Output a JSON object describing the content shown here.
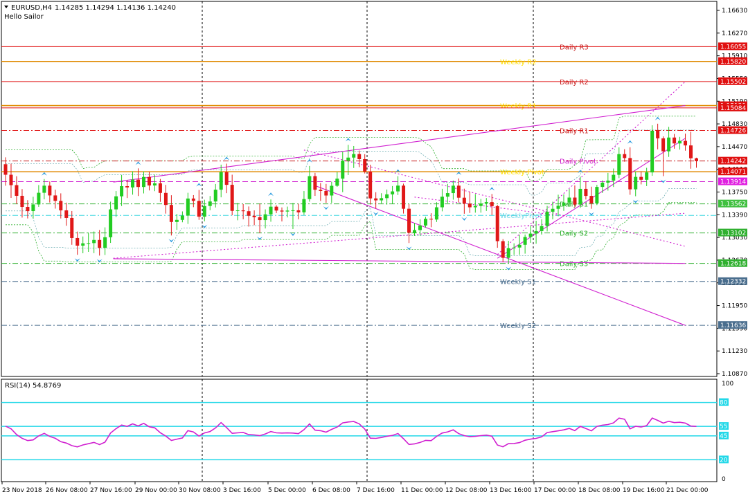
{
  "header": {
    "symbol": "EURUSD,H4",
    "ohlc": "1.14285 1.14294 1.14136 1.14240",
    "subtitle": "Hello Sailor"
  },
  "chart_data": {
    "type": "candlestick",
    "price_axis": {
      "min": 1.1087,
      "max": 1.1663,
      "ticks": [
        "1.16630",
        "1.16270",
        "1.15910",
        "1.15550",
        "1.15190",
        "1.14830",
        "1.14470",
        "1.14110",
        "1.13750",
        "1.13390",
        "1.13030",
        "1.12670",
        "1.12310",
        "1.11950",
        "1.11590",
        "1.11230",
        "1.10870"
      ]
    },
    "time_axis": {
      "labels": [
        "23 Nov 2018",
        "26 Nov 08:00",
        "27 Nov 16:00",
        "29 Nov 00:00",
        "30 Nov 08:00",
        "3 Dec 16:00",
        "5 Dec 00:00",
        "6 Dec 08:00",
        "7 Dec 16:00",
        "11 Dec 00:00",
        "12 Dec 08:00",
        "13 Dec 16:00",
        "17 Dec 00:00",
        "18 Dec 08:00",
        "19 Dec 16:00",
        "21 Dec 00:00"
      ]
    },
    "levels": [
      {
        "name": "Daily R3",
        "price": 1.16055,
        "price_label": "1.16055",
        "color": "#e01010",
        "tag_color": "#e01010",
        "style": "solid",
        "label_color": "#c81c1c"
      },
      {
        "name": "Weekly R2",
        "price": 1.1582,
        "price_label": "1.15820",
        "color": "#e08a00",
        "tag_color": "#e01010",
        "style": "solid",
        "label_color": "#ffe000"
      },
      {
        "name": "Daily R2",
        "price": 1.15502,
        "price_label": "1.15502",
        "color": "#e01010",
        "tag_color": "#e01010",
        "style": "solid",
        "label_color": "#c81c1c"
      },
      {
        "name": "Weekly R1",
        "price": 1.15121,
        "price_label": "1.15121",
        "color": "#e08a00",
        "tag_color": "#e01010",
        "style": "solid",
        "label_color": "#ffe000"
      },
      {
        "name": "",
        "price": 1.15084,
        "price_label": "1.15084",
        "color": "#e01010",
        "tag_color": "#e01010",
        "style": "solid",
        "label_color": "#c81c1c"
      },
      {
        "name": "Daily R1",
        "price": 1.14726,
        "price_label": "1.14726",
        "color": "#e01010",
        "tag_color": "#e01010",
        "style": "dashdot",
        "label_color": "#c81c1c"
      },
      {
        "name": "Daily Pivot",
        "price": 1.14242,
        "price_label": "1.14242",
        "color": "#c81c1c",
        "tag_color": "#e01010",
        "style": "dashdot",
        "label_color": "#d020d0"
      },
      {
        "name": "Weekly Pivot",
        "price": 1.14071,
        "price_label": "1.14071",
        "color": "#e08a00",
        "tag_color": "#e01010",
        "style": "solid",
        "label_color": "#ffe000"
      },
      {
        "name": "",
        "price": 1.13914,
        "price_label": "1.13914",
        "color": "#d020d0",
        "tag_color": "#e020e0",
        "style": "dash",
        "label_color": "#d020d0"
      },
      {
        "name": "Daily S1",
        "price": 1.13562,
        "price_label": "1.13562",
        "color": "#30b030",
        "tag_color": "#40c040",
        "style": "dashdot",
        "label_color": "#30b030"
      },
      {
        "name": "WeeklyPivot",
        "price": 1.1338,
        "price_label": "",
        "color": "#40d8e0",
        "tag_color": "#40d8e0",
        "style": "dashdot",
        "label_color": "#70d8e8"
      },
      {
        "name": "Daily S2",
        "price": 1.13102,
        "price_label": "1.13102",
        "color": "#30b030",
        "tag_color": "#30b030",
        "style": "dashdot",
        "label_color": "#30b030"
      },
      {
        "name": "Daily S3",
        "price": 1.12618,
        "price_label": "1.12618",
        "color": "#30b030",
        "tag_color": "#30b030",
        "style": "dashdot",
        "label_color": "#30b030"
      },
      {
        "name": "Weekly S1",
        "price": 1.12332,
        "price_label": "1.12332",
        "color": "#4a6e8e",
        "tag_color": "#4a6e8e",
        "style": "dashdot",
        "label_color": "#4a6e8e"
      },
      {
        "name": "Weekly S2",
        "price": 1.11636,
        "price_label": "1.11636",
        "color": "#4a6e8e",
        "tag_color": "#4a6e8e",
        "style": "dashdot",
        "label_color": "#4a6e8e"
      }
    ],
    "candles": [
      [
        1.14191,
        1.143,
        1.1385,
        1.14024
      ],
      [
        1.14024,
        1.142,
        1.13657,
        1.13859
      ],
      [
        1.13859,
        1.14001,
        1.13558,
        1.1369
      ],
      [
        1.1369,
        1.13797,
        1.13345,
        1.13514
      ],
      [
        1.13514,
        1.13621,
        1.13331,
        1.13448
      ],
      [
        1.13448,
        1.13675,
        1.13331,
        1.13553
      ],
      [
        1.13553,
        1.1386,
        1.13515,
        1.13738
      ],
      [
        1.13738,
        1.13956,
        1.13634,
        1.13851
      ],
      [
        1.13851,
        1.13918,
        1.13584,
        1.13696
      ],
      [
        1.13696,
        1.13788,
        1.13487,
        1.1361
      ],
      [
        1.1361,
        1.13729,
        1.13331,
        1.13459
      ],
      [
        1.13459,
        1.13582,
        1.13215,
        1.13339
      ],
      [
        1.13339,
        1.13449,
        1.12913,
        1.13021
      ],
      [
        1.13021,
        1.13123,
        1.12755,
        1.129
      ],
      [
        1.129,
        1.13045,
        1.12779,
        1.12937
      ],
      [
        1.12937,
        1.13109,
        1.12801,
        1.1294
      ],
      [
        1.1294,
        1.13125,
        1.12781,
        1.1299
      ],
      [
        1.1299,
        1.13148,
        1.12742,
        1.12866
      ],
      [
        1.12866,
        1.1319,
        1.12752,
        1.13033
      ],
      [
        1.13033,
        1.13597,
        1.12943,
        1.13475
      ],
      [
        1.13475,
        1.13766,
        1.13353,
        1.13682
      ],
      [
        1.13682,
        1.14021,
        1.13528,
        1.13843
      ],
      [
        1.13843,
        1.13939,
        1.13655,
        1.13823
      ],
      [
        1.13823,
        1.1408,
        1.13708,
        1.13947
      ],
      [
        1.13947,
        1.14125,
        1.13687,
        1.1383
      ],
      [
        1.1383,
        1.14078,
        1.13728,
        1.13989
      ],
      [
        1.13989,
        1.14074,
        1.13775,
        1.13854
      ],
      [
        1.13854,
        1.14024,
        1.13764,
        1.13888
      ],
      [
        1.13888,
        1.13957,
        1.13594,
        1.13736
      ],
      [
        1.13736,
        1.13863,
        1.13408,
        1.13545
      ],
      [
        1.13545,
        1.13699,
        1.13061,
        1.13275
      ],
      [
        1.13275,
        1.13403,
        1.1315,
        1.13308
      ],
      [
        1.13308,
        1.13443,
        1.1327,
        1.13376
      ],
      [
        1.13376,
        1.13738,
        1.13244,
        1.13647
      ],
      [
        1.13647,
        1.13701,
        1.1351,
        1.1361
      ],
      [
        1.1361,
        1.13783,
        1.13309,
        1.13359
      ],
      [
        1.13359,
        1.13628,
        1.13286,
        1.13529
      ],
      [
        1.13529,
        1.13687,
        1.13462,
        1.136
      ],
      [
        1.136,
        1.13877,
        1.13505,
        1.13787
      ],
      [
        1.13787,
        1.14184,
        1.13666,
        1.14064
      ],
      [
        1.14064,
        1.142,
        1.13732,
        1.13864
      ],
      [
        1.13864,
        1.14025,
        1.13381,
        1.13451
      ],
      [
        1.13451,
        1.13578,
        1.13302,
        1.13459
      ],
      [
        1.13459,
        1.13559,
        1.13318,
        1.13446
      ],
      [
        1.13446,
        1.13521,
        1.13202,
        1.13374
      ],
      [
        1.13374,
        1.13459,
        1.13224,
        1.1335
      ],
      [
        1.1335,
        1.13566,
        1.13097,
        1.13305
      ],
      [
        1.13305,
        1.13475,
        1.13172,
        1.13396
      ],
      [
        1.13396,
        1.13632,
        1.13279,
        1.13518
      ],
      [
        1.13518,
        1.13541,
        1.13415,
        1.13456
      ],
      [
        1.13456,
        1.13506,
        1.13284,
        1.13441
      ],
      [
        1.13441,
        1.13519,
        1.13347,
        1.13456
      ],
      [
        1.13456,
        1.13578,
        1.13163,
        1.1346
      ],
      [
        1.1346,
        1.13564,
        1.13317,
        1.13428
      ],
      [
        1.13428,
        1.13766,
        1.13386,
        1.13638
      ],
      [
        1.13638,
        1.14163,
        1.13597,
        1.14002
      ],
      [
        1.14002,
        1.14054,
        1.13689,
        1.13786
      ],
      [
        1.13786,
        1.13893,
        1.13609,
        1.13767
      ],
      [
        1.13767,
        1.13879,
        1.13578,
        1.13695
      ],
      [
        1.13695,
        1.13915,
        1.1358,
        1.13849
      ],
      [
        1.13849,
        1.14069,
        1.13832,
        1.13962
      ],
      [
        1.13962,
        1.1439,
        1.13748,
        1.14247
      ],
      [
        1.14247,
        1.14498,
        1.14019,
        1.14296
      ],
      [
        1.14296,
        1.1448,
        1.14131,
        1.14352
      ],
      [
        1.14352,
        1.14407,
        1.14145,
        1.14271
      ],
      [
        1.14271,
        1.1435,
        1.14044,
        1.14076
      ],
      [
        1.14076,
        1.14183,
        1.13552,
        1.13649
      ],
      [
        1.13649,
        1.13747,
        1.1349,
        1.13618
      ],
      [
        1.13618,
        1.13731,
        1.13571,
        1.13653
      ],
      [
        1.13653,
        1.1379,
        1.13551,
        1.13713
      ],
      [
        1.13713,
        1.13845,
        1.13561,
        1.1376
      ],
      [
        1.1376,
        1.14001,
        1.13702,
        1.13852
      ],
      [
        1.13852,
        1.13883,
        1.13409,
        1.13485
      ],
      [
        1.13485,
        1.13558,
        1.12941,
        1.13103
      ],
      [
        1.13103,
        1.13259,
        1.13054,
        1.13147
      ],
      [
        1.13147,
        1.13318,
        1.13057,
        1.13219
      ],
      [
        1.13219,
        1.13356,
        1.13188,
        1.13326
      ],
      [
        1.13326,
        1.13414,
        1.13192,
        1.13314
      ],
      [
        1.13314,
        1.13589,
        1.13275,
        1.13508
      ],
      [
        1.13508,
        1.13801,
        1.13444,
        1.13676
      ],
      [
        1.13676,
        1.13879,
        1.13576,
        1.13733
      ],
      [
        1.13733,
        1.13932,
        1.13629,
        1.13851
      ],
      [
        1.13851,
        1.13965,
        1.13584,
        1.1366
      ],
      [
        1.1366,
        1.13803,
        1.13406,
        1.13566
      ],
      [
        1.13566,
        1.13752,
        1.13418,
        1.13508
      ],
      [
        1.13508,
        1.13718,
        1.13423,
        1.13529
      ],
      [
        1.13529,
        1.1364,
        1.13423,
        1.13567
      ],
      [
        1.13567,
        1.13655,
        1.1345,
        1.1359
      ],
      [
        1.1359,
        1.13719,
        1.13383,
        1.13526
      ],
      [
        1.13526,
        1.13545,
        1.12866,
        1.12971
      ],
      [
        1.12971,
        1.13003,
        1.1264,
        1.12707
      ],
      [
        1.12707,
        1.12977,
        1.1262,
        1.12861
      ],
      [
        1.12861,
        1.12937,
        1.12753,
        1.1287
      ],
      [
        1.1287,
        1.13073,
        1.12756,
        1.12913
      ],
      [
        1.12913,
        1.13076,
        1.12773,
        1.13037
      ],
      [
        1.13037,
        1.13222,
        1.12945,
        1.13091
      ],
      [
        1.13091,
        1.13295,
        1.12931,
        1.13131
      ],
      [
        1.13131,
        1.13318,
        1.13075,
        1.13211
      ],
      [
        1.13211,
        1.1353,
        1.13126,
        1.13438
      ],
      [
        1.13438,
        1.13597,
        1.13317,
        1.13484
      ],
      [
        1.13484,
        1.13707,
        1.13366,
        1.13533
      ],
      [
        1.13533,
        1.13713,
        1.13451,
        1.13582
      ],
      [
        1.13582,
        1.138,
        1.13515,
        1.13662
      ],
      [
        1.13662,
        1.13855,
        1.13511,
        1.13551
      ],
      [
        1.13551,
        1.13993,
        1.13498,
        1.138
      ],
      [
        1.138,
        1.13918,
        1.13631,
        1.13689
      ],
      [
        1.13689,
        1.13835,
        1.13485,
        1.1357
      ],
      [
        1.1357,
        1.13865,
        1.13543,
        1.13831
      ],
      [
        1.13831,
        1.13935,
        1.13735,
        1.13899
      ],
      [
        1.13899,
        1.14053,
        1.13772,
        1.13931
      ],
      [
        1.13931,
        1.14123,
        1.1383,
        1.14023
      ],
      [
        1.14023,
        1.14458,
        1.1397,
        1.14351
      ],
      [
        1.14351,
        1.14429,
        1.14231,
        1.14289
      ],
      [
        1.14289,
        1.1446,
        1.13706,
        1.13793
      ],
      [
        1.13793,
        1.14076,
        1.13683,
        1.1399
      ],
      [
        1.1399,
        1.14079,
        1.13871,
        1.13944
      ],
      [
        1.13944,
        1.14134,
        1.13844,
        1.14061
      ],
      [
        1.14061,
        1.14808,
        1.14007,
        1.14722
      ],
      [
        1.14722,
        1.14833,
        1.14427,
        1.14601
      ],
      [
        1.14601,
        1.14632,
        1.14002,
        1.14395
      ],
      [
        1.14395,
        1.14783,
        1.14307,
        1.14614
      ],
      [
        1.14614,
        1.14671,
        1.14437,
        1.1452
      ],
      [
        1.1452,
        1.14625,
        1.14422,
        1.14561
      ],
      [
        1.14561,
        1.14676,
        1.14406,
        1.14489
      ],
      [
        1.14489,
        1.14705,
        1.1412,
        1.14285
      ],
      [
        1.14285,
        1.14294,
        1.14136,
        1.1424
      ]
    ],
    "rsi": {
      "label": "RSI(14) 54.8769",
      "range": [
        0,
        100
      ],
      "scale_labels": [
        "100",
        "0"
      ],
      "levels": [
        80,
        55,
        45,
        20
      ],
      "level_labels": [
        "80",
        "55",
        "45",
        "20"
      ],
      "values": [
        55.2,
        52.4,
        46.3,
        42.5,
        40.1,
        40.8,
        45.0,
        47.6,
        44.4,
        42.5,
        38.9,
        37.5,
        34.8,
        33.5,
        35.5,
        36.8,
        38.2,
        35.9,
        38.4,
        48.0,
        52.6,
        56.4,
        55.0,
        57.6,
        55.4,
        58.1,
        54.6,
        53.4,
        48.3,
        44.8,
        40.2,
        41.6,
        42.8,
        50.5,
        49.1,
        44.8,
        48.1,
        49.6,
        53.3,
        58.9,
        53.7,
        47.7,
        48.2,
        48.6,
        46.3,
        46.0,
        45.2,
        47.0,
        49.6,
        48.2,
        48.0,
        48.1,
        48.0,
        47.3,
        51.5,
        57.5,
        51.0,
        50.4,
        48.9,
        51.8,
        54.3,
        58.6,
        59.6,
        60.1,
        57.6,
        52.1,
        42.6,
        42.4,
        43.3,
        44.6,
        45.5,
        47.5,
        42.0,
        36.0,
        36.7,
        38.1,
        40.3,
        40.0,
        44.5,
        48.0,
        49.2,
        51.3,
        47.3,
        45.3,
        44.1,
        44.5,
        45.3,
        45.8,
        44.7,
        35.4,
        33.6,
        36.9,
        37.0,
        38.0,
        40.4,
        41.6,
        42.4,
        44.0,
        48.5,
        49.4,
        50.3,
        51.3,
        52.8,
        50.5,
        55.0,
        52.7,
        50.3,
        55.0,
        56.2,
        56.9,
        58.6,
        63.6,
        62.5,
        52.4,
        55.1,
        54.3,
        55.8,
        63.7,
        61.2,
        58.4,
        60.3,
        58.9,
        59.3,
        58.4,
        55.3,
        54.9
      ]
    },
    "trendlines": [
      {
        "name": "upper-channel-line",
        "points": [
          [
            19.5,
            1.13907
          ],
          [
            123,
            1.15121
          ]
        ],
        "color": "#d020d0",
        "style": "solid"
      },
      {
        "name": "lower-support-line",
        "points": [
          [
            19.5,
            1.12692
          ],
          [
            123,
            1.12618
          ]
        ],
        "color": "#d020d0",
        "style": "solid"
      },
      {
        "name": "falling-trend-line",
        "points": [
          [
            56,
            1.13851
          ],
          [
            123,
            1.11636
          ]
        ],
        "color": "#d020d0",
        "style": "solid"
      },
      {
        "name": "rising-trend-line",
        "points": [
          [
            89,
            1.127
          ],
          [
            123,
            1.14602
          ]
        ],
        "color": "#d020d0",
        "style": "solid"
      },
      {
        "name": "rising-dotted-line",
        "points": [
          [
            89,
            1.1276
          ],
          [
            123,
            1.15502
          ]
        ],
        "color": "#d020d0",
        "style": "dot"
      },
      {
        "name": "lower-dotted-line",
        "points": [
          [
            19.5,
            1.127
          ],
          [
            123,
            1.13414
          ]
        ],
        "color": "#d020d0",
        "style": "dot"
      },
      {
        "name": "middle-dotted-line",
        "points": [
          [
            54,
            1.14416
          ],
          [
            123,
            1.12889
          ]
        ],
        "color": "#d020d0",
        "style": "dot"
      },
      {
        "name": "short-dotted-line",
        "points": [
          [
            74,
            1.1367
          ],
          [
            100,
            1.1338
          ]
        ],
        "color": "#d020d0",
        "style": "dot"
      }
    ]
  }
}
